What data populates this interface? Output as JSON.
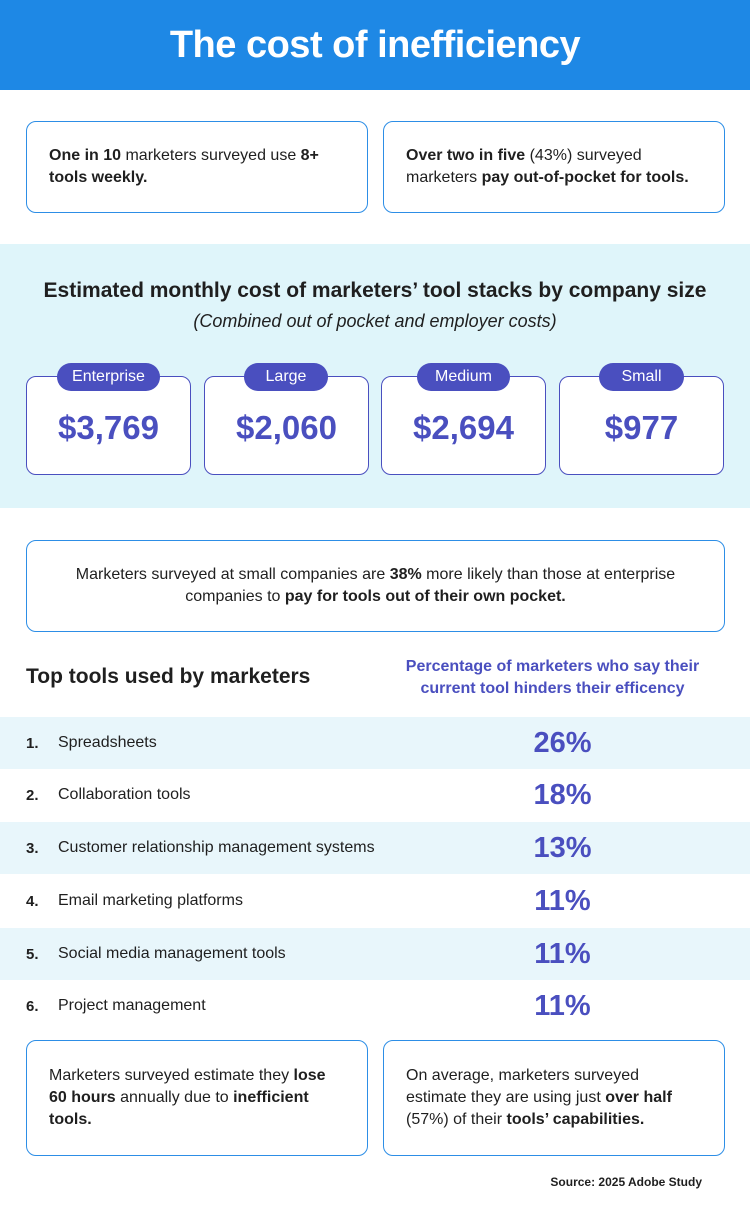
{
  "header": {
    "title": "The cost of inefficiency"
  },
  "top_cards": [
    {
      "parts": [
        {
          "t": "One in 10",
          "b": true
        },
        {
          "t": " marketers surveyed use ",
          "b": false
        },
        {
          "t": "8+ tools weekly.",
          "b": true
        }
      ]
    },
    {
      "parts": [
        {
          "t": "Over two in five",
          "b": true
        },
        {
          "t": " (43%) surveyed marketers ",
          "b": false
        },
        {
          "t": "pay out-of-pocket for tools.",
          "b": true
        }
      ]
    }
  ],
  "cost": {
    "title": "Estimated monthly cost of marketers’ tool stacks by company size",
    "subtitle": "(Combined out of pocket and employer costs)",
    "sizes": [
      {
        "label": "Enterprise",
        "value": "$3,769"
      },
      {
        "label": "Large",
        "value": "$2,060"
      },
      {
        "label": "Medium",
        "value": "$2,694"
      },
      {
        "label": "Small",
        "value": "$977"
      }
    ]
  },
  "note": {
    "parts": [
      {
        "t": "Marketers surveyed at small companies are ",
        "b": false
      },
      {
        "t": "38%",
        "b": true
      },
      {
        "t": " more likely than those at enterprise companies to ",
        "b": false
      },
      {
        "t": "pay for tools out of their own pocket.",
        "b": true
      }
    ]
  },
  "tools": {
    "heading": "Top tools used by marketers",
    "pct_heading": "Percentage of marketers who say their current tool hinders their efficency",
    "rows": [
      {
        "rank": "1.",
        "name": "Spreadsheets",
        "pct": "26%"
      },
      {
        "rank": "2.",
        "name": "Collaboration tools",
        "pct": "18%"
      },
      {
        "rank": "3.",
        "name": "Customer relationship management systems",
        "pct": "13%"
      },
      {
        "rank": "4.",
        "name": "Email marketing platforms",
        "pct": "11%"
      },
      {
        "rank": "5.",
        "name": "Social media management tools",
        "pct": "11%"
      },
      {
        "rank": "6.",
        "name": "Project management",
        "pct": "11%"
      }
    ]
  },
  "bottom_cards": [
    {
      "parts": [
        {
          "t": "Marketers surveyed estimate they ",
          "b": false
        },
        {
          "t": "lose 60 hours",
          "b": true
        },
        {
          "t": " annually due to ",
          "b": false
        },
        {
          "t": "inefficient tools.",
          "b": true
        }
      ]
    },
    {
      "parts": [
        {
          "t": "On average, marketers surveyed estimate they are using just ",
          "b": false
        },
        {
          "t": "over half",
          "b": true
        },
        {
          "t": " (57%) of their ",
          "b": false
        },
        {
          "t": "tools’ capabilities.",
          "b": true
        }
      ]
    }
  ],
  "source": "Source: 2025 Adobe Study",
  "colors": {
    "header_blue": "#1e88e5",
    "accent_indigo": "#4a4fbf",
    "band_cyan": "#dff5fa"
  }
}
